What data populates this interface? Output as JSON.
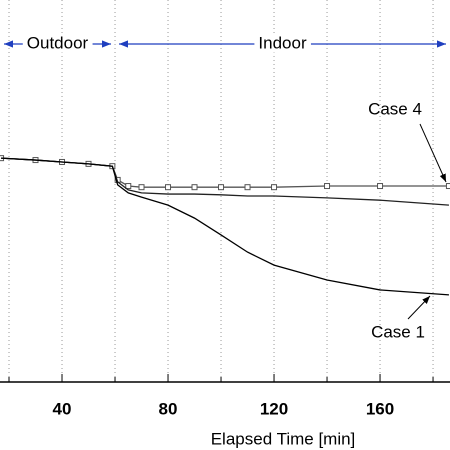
{
  "chart_data": {
    "type": "line",
    "x_label": "Elapsed Time [min]",
    "x": [
      17,
      30,
      40,
      50,
      59,
      61,
      65,
      70,
      80,
      90,
      100,
      110,
      120,
      140,
      160,
      186
    ],
    "series": [
      {
        "name": "Case 4",
        "color": "#555555",
        "markers": true,
        "values": [
          58.6,
          58.1,
          57.6,
          57.1,
          56.5,
          52.9,
          51.3,
          51.0,
          51.0,
          51.0,
          51.0,
          51.0,
          51.0,
          51.3,
          51.3,
          51.3
        ]
      },
      {
        "color": "#222222",
        "markers": false,
        "values": [
          58.6,
          58.1,
          57.6,
          57.1,
          56.5,
          52.4,
          50.3,
          49.5,
          49.2,
          49.2,
          49.0,
          48.7,
          48.7,
          48.2,
          47.6,
          46.3
        ]
      },
      {
        "name": "Case 1",
        "color": "#000000",
        "markers": false,
        "values": [
          58.6,
          58.1,
          57.6,
          57.1,
          56.5,
          51.6,
          49.5,
          48.4,
          46.3,
          42.9,
          38.5,
          34.0,
          30.6,
          26.7,
          24.1,
          22.8
        ]
      }
    ],
    "xlim": [
      16.6,
      186.4
    ],
    "ylim": [
      0,
      100
    ],
    "xticks": [
      40,
      80,
      120,
      160
    ],
    "xminor": [
      20,
      60,
      100,
      140,
      180
    ],
    "grid": true,
    "regions": [
      {
        "label": "Outdoor",
        "color": "#1f3fbf",
        "from": 16.6,
        "to": 60
      },
      {
        "label": "Indoor",
        "color": "#1f3fbf",
        "from": 60,
        "to": 186.4
      }
    ]
  }
}
